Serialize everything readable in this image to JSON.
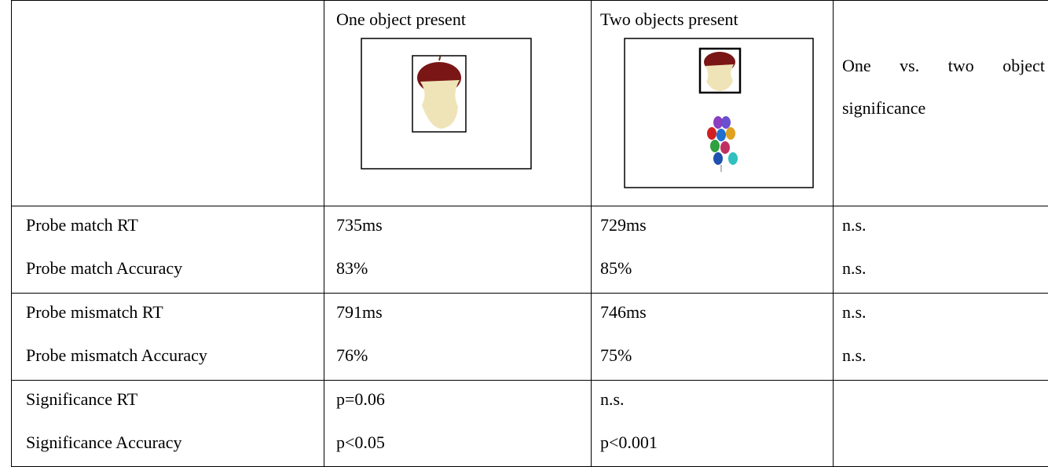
{
  "table": {
    "columns": [
      "One object present",
      "Two objects present",
      "One vs. two object significance"
    ],
    "rows": [
      {
        "lines": [
          [
            "Probe match RT",
            "735ms",
            "729ms",
            "n.s."
          ],
          [
            "Probe match Accuracy",
            "83%",
            "85%",
            "n.s."
          ]
        ]
      },
      {
        "lines": [
          [
            "Probe mismatch RT",
            "791ms",
            "746ms",
            "n.s."
          ],
          [
            "Probe mismatch Accuracy",
            "76%",
            "75%",
            "n.s."
          ]
        ]
      },
      {
        "lines": [
          [
            "Significance RT",
            "p=0.06",
            "n.s."
          ],
          [
            "Significance Accuracy",
            "p<0.05",
            "p<0.001"
          ]
        ]
      }
    ]
  }
}
